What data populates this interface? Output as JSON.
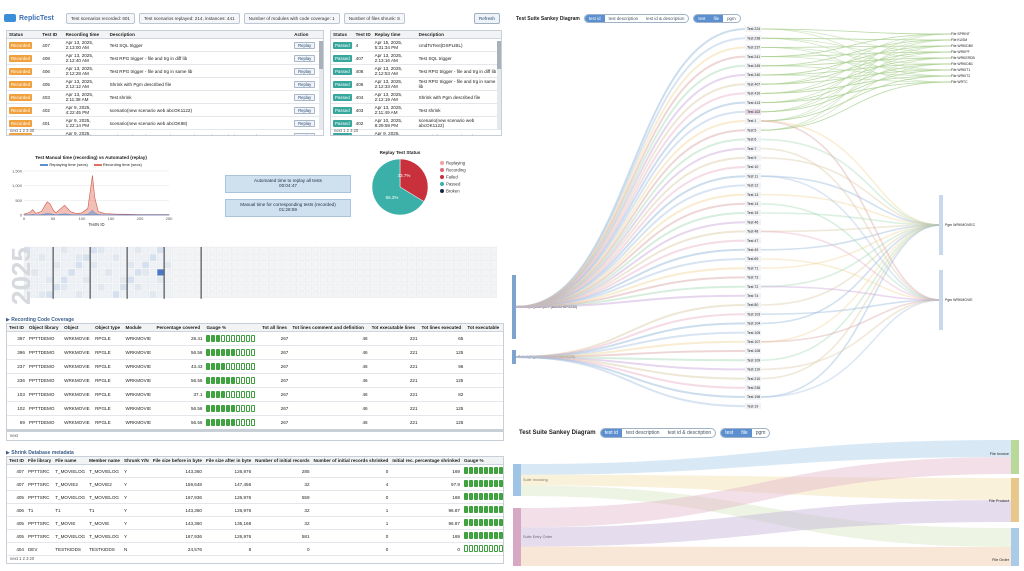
{
  "app": {
    "name": "ReplicTest"
  },
  "header": {
    "pills": [
      "Test scenarios recorded: 601",
      "Test scenarios replayed: 214, instances: 441",
      "Number of modules with code coverage: 1",
      "Number of files shrunk: 8"
    ],
    "refresh": "Refresh"
  },
  "recorded": {
    "headers": [
      "Status",
      "Test ID",
      "Recording time",
      "Description",
      "Action"
    ],
    "rows": [
      [
        "Recorded",
        "407",
        "Apr 13, 2025, 2:13:00 AM",
        "Test SQL trigger",
        "Replay"
      ],
      [
        "Recorded",
        "408",
        "Apr 13, 2025, 2:12:40 AM",
        "Test RPG trigger - file and trg in diff lib",
        "Replay"
      ],
      [
        "Recorded",
        "406",
        "Apr 13, 2025, 2:12:28 AM",
        "Test RPG trigger - file and trg in same lib",
        "Replay"
      ],
      [
        "Recorded",
        "405",
        "Apr 13, 2025, 2:12:12 AM",
        "Shrink with Pgm described file",
        "Replay"
      ],
      [
        "Recorded",
        "403",
        "Apr 13, 2025, 2:11:38 AM",
        "Test shrink",
        "Replay"
      ],
      [
        "Recorded",
        "402",
        "Apr 9, 2025, 4:22:45 PM",
        "scenario(new scenario web abcOK1122)",
        "Replay"
      ],
      [
        "Recorded",
        "401",
        "Apr 9, 2025, 1:22:14 PM",
        "scenario(new scenario web abcOK88)",
        "Replay"
      ],
      [
        "Recorded",
        "400",
        "Apr 9, 2025, 12:20:54",
        "cmdToText(PPTT/CALL PGM(PPTDEMO/TEST01) PARM(A:(*CHAR 16):B",
        "Replay"
      ]
    ],
    "pager": "next  1  2  3  30"
  },
  "replayed": {
    "headers": [
      "Status",
      "Test ID",
      "Replay time",
      "Description"
    ],
    "rows": [
      [
        "Passed",
        "4",
        "Apr 15, 2025, 5:31:34 PM",
        "cmdToText(DSPLIBL)"
      ],
      [
        "Passed",
        "407",
        "Apr 13, 2025, 2:13:16 AM",
        "Test SQL trigger"
      ],
      [
        "Passed",
        "408",
        "Apr 13, 2025, 2:12:53 AM",
        "Test RPG trigger - file and trg in diff lib"
      ],
      [
        "Passed",
        "406",
        "Apr 13, 2025, 2:12:33 AM",
        "Test RPG trigger - file and trg in same lib"
      ],
      [
        "Passed",
        "404",
        "Apr 13, 2025, 2:12:19 AM",
        "Shrink with Pgm described file"
      ],
      [
        "Passed",
        "403",
        "Apr 13, 2025, 2:11:49 AM",
        "Test shrink"
      ],
      [
        "Passed",
        "402",
        "Apr 10, 2025, 8:29:59 PM",
        "scenario(new scenario web abcOK1122)"
      ],
      [
        "Passed",
        "401",
        "Apr 9, 2025, 4:24:15",
        "scenario(new scenario web"
      ]
    ],
    "pager": "next  1  2  3  20"
  },
  "chart_data": [
    {
      "type": "area",
      "title": "Test Manual time (recording) vs Automated (replay)",
      "xlabel": "TestN ID",
      "ylabel": "",
      "ylim": [
        0,
        1500
      ],
      "yticks": [
        "1,500",
        "1,000",
        "500",
        "0"
      ],
      "xticks": [
        "0",
        "50",
        "100",
        "150",
        "200",
        "250"
      ],
      "series": [
        {
          "name": "Replaying time (secs)",
          "color": "#5b8fd0"
        },
        {
          "name": "Recording time (secs)",
          "color": "#e07060"
        }
      ]
    },
    {
      "type": "pie",
      "title": "Replay Test Status",
      "slices": [
        {
          "name": "Replaying",
          "value": 0,
          "color": "#f2a0a0"
        },
        {
          "name": "Recording",
          "value": 0,
          "color": "#e0667a"
        },
        {
          "name": "Failed",
          "value": 33.7,
          "color": "#c8303c"
        },
        {
          "name": "Passed",
          "value": 66.3,
          "color": "#3ab0a8"
        },
        {
          "name": "Broken",
          "value": 0,
          "color": "#1a2a4a"
        }
      ],
      "labels": [
        "33.7%",
        "66.3%"
      ]
    }
  ],
  "summary": {
    "automated": "Automated time to replay all tests\n00:04:47",
    "manual": "Manual time for corresponding tests (recorded)\n01:28:59"
  },
  "heatmap": {
    "year": "2025"
  },
  "coverage": {
    "title": "Recording Code Coverage",
    "headers": [
      "Test ID",
      "Object library",
      "Object",
      "Object type",
      "Module",
      "Percentage covered",
      "Gauge %",
      "Tot all lines",
      "Tot lines comment and definition",
      "Tot executable lines",
      "Tot lines executed",
      "Tot executable"
    ],
    "rows": [
      [
        "397",
        "PPTTDEMO",
        "WRKMOVIE",
        "RPGLE",
        "WRKMOVIE",
        "28.41",
        "3",
        "267",
        "46",
        "221",
        "65",
        ""
      ],
      [
        "396",
        "PPTTDEMO",
        "WRKMOVIE",
        "RPGLE",
        "WRKMOVIE",
        "56.56",
        "6",
        "267",
        "46",
        "221",
        "125",
        ""
      ],
      [
        "237",
        "PPTTDEMO",
        "WRKMOVIE",
        "RPGLE",
        "WRKMOVIE",
        "43.43",
        "4",
        "267",
        "46",
        "221",
        "96",
        ""
      ],
      [
        "236",
        "PPTTDEMO",
        "WRKMOVIE",
        "RPGLE",
        "WRKMOVIE",
        "56.56",
        "6",
        "267",
        "46",
        "221",
        "125",
        ""
      ],
      [
        "103",
        "PPTTDEMO",
        "WRKMOVIE",
        "RPGLE",
        "WRKMOVIE",
        "37.1",
        "4",
        "267",
        "46",
        "221",
        "82",
        ""
      ],
      [
        "102",
        "PPTTDEMO",
        "WRKMOVIE",
        "RPGLE",
        "WRKMOVIE",
        "56.56",
        "6",
        "267",
        "46",
        "221",
        "125",
        ""
      ],
      [
        "69",
        "PPTTDEMO",
        "WRKMOVIE",
        "RPGLE",
        "WRKMOVIE",
        "56.56",
        "6",
        "267",
        "46",
        "221",
        "125",
        ""
      ]
    ],
    "pager": "next"
  },
  "shrink": {
    "title": "Shrink Database metadata",
    "headers": [
      "Test ID",
      "File library",
      "File name",
      "Member name",
      "Shrunk Y/N",
      "File size before in byte",
      "File size after in byte",
      "Number of initial records",
      "Number of initial records shrinked",
      "Initial rec. percentage shrinked",
      "Gauge %",
      "Number of"
    ],
    "rows": [
      [
        "407",
        "PPTTSRC",
        "T_MOVIELOG",
        "T_MOVIELOG",
        "Y",
        "143,360",
        "126,976",
        "285",
        "0",
        "169",
        "10"
      ],
      [
        "407",
        "PPTTSRC",
        "T_MOVIE2",
        "T_MOVIE2",
        "Y",
        "159,648",
        "147,456",
        "32",
        "4",
        "97.9",
        "10"
      ],
      [
        "405",
        "PPTTSRC",
        "T_MOVIELOG",
        "T_MOVIELOG",
        "Y",
        "167,936",
        "126,976",
        "559",
        "0",
        "169",
        "10"
      ],
      [
        "406",
        "T1",
        "T1",
        "T1",
        "Y",
        "143,360",
        "126,976",
        "32",
        "1",
        "96.87",
        "10"
      ],
      [
        "405",
        "PPTTSRC",
        "T_MOVIE",
        "T_MOVIE",
        "Y",
        "143,360",
        "135,168",
        "32",
        "1",
        "96.87",
        "10"
      ],
      [
        "405",
        "PPTTSRC",
        "T_MOVIELOG",
        "T_MOVIELOG",
        "Y",
        "167,936",
        "126,976",
        "581",
        "0",
        "169",
        "10"
      ],
      [
        "404",
        "DEV",
        "TESTKIDDS",
        "TESTKIDDS",
        "N",
        "24,576",
        "8",
        "0",
        "0",
        "0",
        "0"
      ]
    ],
    "pager": "next  1  2  3  20"
  },
  "sankey1": {
    "title": "Test Suite Sankey Diagram",
    "toggles1": [
      "test id",
      "test description",
      "test id & description"
    ],
    "toggles2": [
      "test",
      "file",
      "pgm"
    ],
    "sources": [
      "Suite J(08_2024)APP(BANCHM+0230)",
      "Suite J(08_2124)PP(BANCHM+0229)"
    ],
    "tests": [
      "Test 224",
      "Test 238",
      "Test 237",
      "Test 241",
      "Test 245",
      "Test 240",
      "Test 407",
      "Test 410",
      "Test 413",
      "Test 102",
      "Test 1",
      "Test 5",
      "Test 6",
      "Test 7",
      "Test 9",
      "Test 10",
      "Test 11",
      "Test 12",
      "Test 13",
      "Test 14",
      "Test 15",
      "Test 46",
      "Test 48",
      "Test 47",
      "Test 49",
      "Test 69",
      "Test 71",
      "Test 73",
      "Test 72",
      "Test 74",
      "Test 80",
      "Test 103",
      "Test 104",
      "Test 105",
      "Test 107",
      "Test 108",
      "Test 109",
      "Test 119",
      "Test 210",
      "Test 236",
      "Test 196",
      "Test 19"
    ],
    "files": [
      "File SPRINT",
      "File KUSM",
      "File WRKIDB0",
      "File WRKPF",
      "File WRKERDB",
      "File WRKIDB1",
      "File WRKIT1",
      "File WRKIT2",
      "File WRTC"
    ],
    "pgms": [
      "Pgm WRKMOVIEC",
      "Pgm WRKMOVIE"
    ]
  },
  "sankey2": {
    "title": "Test Suite Sankey Diagram",
    "toggles1": [
      "test id",
      "test description",
      "test id & description"
    ],
    "toggles2": [
      "test",
      "file",
      "pgm"
    ],
    "sources": [
      "Suite Invoicing",
      "Suite Entry Order"
    ],
    "targets": [
      "File Invoice",
      "File Product",
      "File Order"
    ]
  }
}
